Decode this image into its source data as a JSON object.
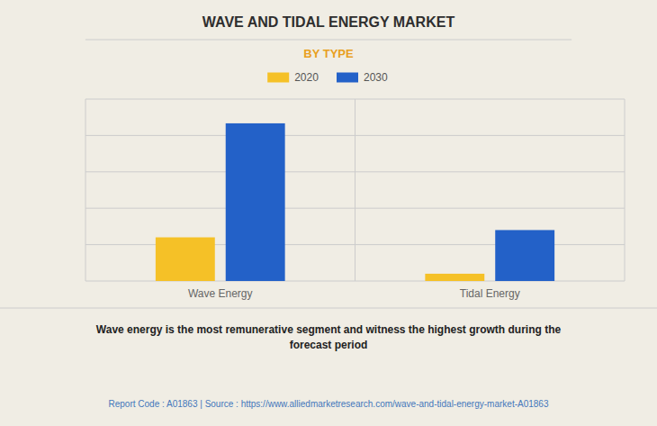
{
  "chart_data": {
    "type": "bar",
    "title": "WAVE AND TIDAL ENERGY MARKET",
    "subtitle": "BY TYPE",
    "categories": [
      "Wave Energy",
      "Tidal Energy"
    ],
    "series": [
      {
        "name": "2020",
        "color": "#F5C127",
        "values": [
          180,
          30
        ]
      },
      {
        "name": "2030",
        "color": "#2361C8",
        "values": [
          650,
          210
        ]
      }
    ],
    "ylim": [
      0,
      750
    ],
    "yticks": [
      0,
      150,
      300,
      450,
      600,
      750
    ],
    "grid": true,
    "legend": "top",
    "tick_labels": "x",
    "annotations": [
      "Wave energy is the most remunerative segment and witness the highest growth during the\nforecast period",
      "Report Code : A01863  |  Source : https://www.alliedmarketresearch.com/wave-and-tidal-energy-market-A01863"
    ]
  }
}
